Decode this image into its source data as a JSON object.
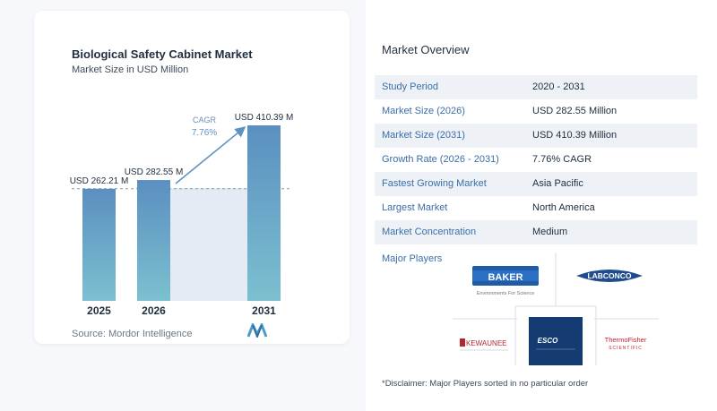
{
  "chart": {
    "title": "Biological Safety Cabinet Market",
    "subtitle": "Market Size in USD Million",
    "source": "Source:  Mordor Intelligence"
  },
  "chart_data": {
    "type": "bar",
    "categories": [
      "2025",
      "2026",
      "2031"
    ],
    "values": [
      262.21,
      282.55,
      410.39
    ],
    "value_labels": [
      "USD 262.21 M",
      "USD 282.55 M",
      "USD 410.39 M"
    ],
    "cagr_label": "CAGR",
    "cagr_value": "7.76%",
    "bar_color": "#5b92c1",
    "bar_color_bottom": "#7bbdd0",
    "reference_line": true
  },
  "overview": {
    "title": "Market Overview",
    "rows": [
      {
        "label": "Study Period",
        "value": "2020 - 2031"
      },
      {
        "label": "Market Size (2026)",
        "value": "USD 282.55 Million"
      },
      {
        "label": "Market Size (2031)",
        "value": "USD 410.39 Million"
      },
      {
        "label": "Growth Rate (2026 - 2031)",
        "value": "7.76% CAGR"
      },
      {
        "label": "Fastest Growing Market",
        "value": "Asia Pacific"
      },
      {
        "label": "Largest Market",
        "value": "North America"
      },
      {
        "label": "Market Concentration",
        "value": "Medium"
      }
    ]
  },
  "players": {
    "title": "Major Players",
    "logos": {
      "baker": "BAKER",
      "baker_tagline": "Environments For Science",
      "labconco": "LABCONCO",
      "kewaunee": "KEWAUNEE",
      "esco": "ESCO",
      "thermo_line1": "ThermoFisher",
      "thermo_line2": "SCIENTIFIC"
    }
  },
  "disclaimer": "*Disclaimer: Major Players sorted in no particular order"
}
